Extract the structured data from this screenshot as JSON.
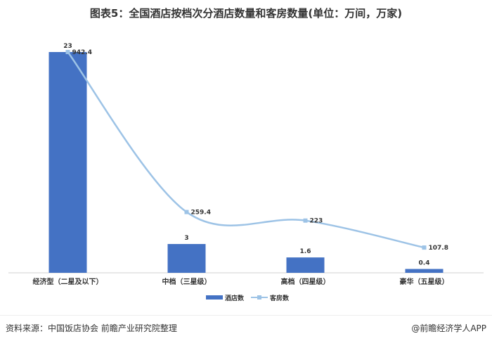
{
  "title": "图表5：全国酒店按档次分酒店数量和客房数量(单位：万间，万家)",
  "source": "资料来源：中国饭店协会 前瞻产业研究院整理",
  "credit": "@前瞻经济学人APP",
  "colors": {
    "bar": "#4472C4",
    "line": "#9DC3E6",
    "axis": "#d0d0d0",
    "text": "#333333"
  },
  "chart_data": {
    "type": "bar",
    "categories": [
      "经济型（二星及以下）",
      "中档（三星级）",
      "高档（四星级）",
      "豪华（五星级）"
    ],
    "series": [
      {
        "name": "酒店数",
        "type": "bar",
        "values": [
          23,
          3,
          1.6,
          0.4
        ],
        "labels": [
          "23",
          "3",
          "1.6",
          "0.4"
        ]
      },
      {
        "name": "客房数",
        "type": "line",
        "values": [
          942.4,
          259.4,
          223,
          107.8
        ],
        "labels": [
          "942.4",
          "259.4",
          "223",
          "107.8"
        ]
      }
    ],
    "legend": "bottom-center",
    "grid": false
  }
}
